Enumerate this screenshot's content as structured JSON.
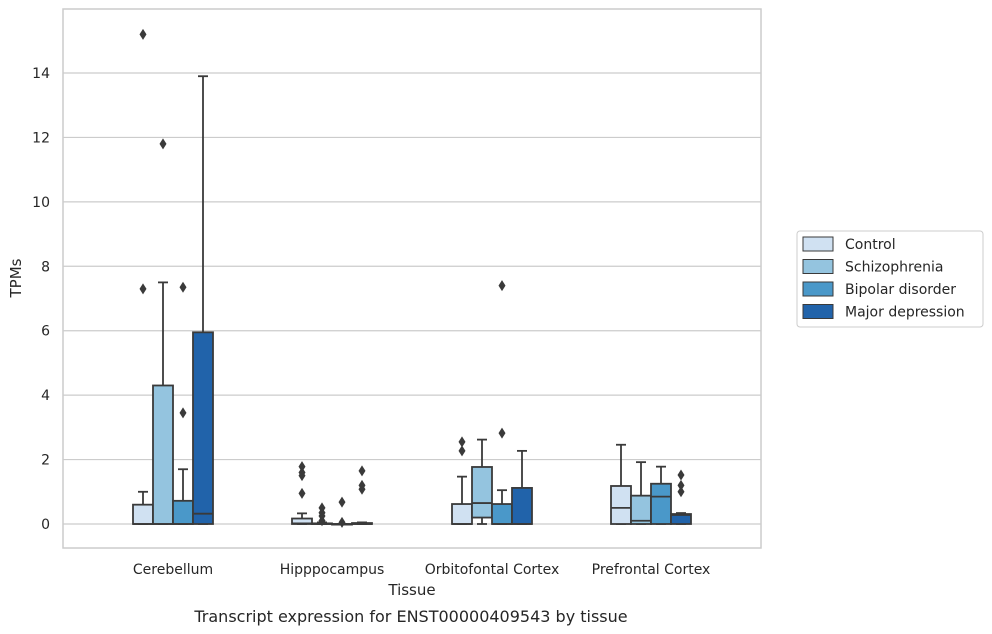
{
  "chart_data": {
    "type": "box",
    "caption": "Transcript expression for ENST00000409543 by tissue",
    "xlabel": "Tissue",
    "ylabel": "TPMs",
    "ylim": [
      -0.75,
      15.6
    ],
    "yticks": [
      0,
      2,
      4,
      6,
      8,
      10,
      12,
      14
    ],
    "grid": "horizontal",
    "legend_position": "right",
    "categories": [
      "Cerebellum",
      "Hipppocampus",
      "Orbitofontal Cortex",
      "Prefrontal Cortex"
    ],
    "series": [
      {
        "name": "Control",
        "color": "#d0e1f2"
      },
      {
        "name": "Schizophrenia",
        "color": "#94c4df"
      },
      {
        "name": "Bipolar disorder",
        "color": "#4a98c9"
      },
      {
        "name": "Major depression",
        "color": "#2163aa"
      }
    ],
    "boxes": [
      [
        {
          "q1": 0,
          "median": 0,
          "q3": 0.6,
          "wlo": 0,
          "whi": 1.0,
          "outliers": [
            7.3,
            15.2
          ]
        },
        {
          "q1": 0,
          "median": 0,
          "q3": 4.3,
          "wlo": 0,
          "whi": 7.5,
          "outliers": [
            11.8
          ]
        },
        {
          "q1": 0,
          "median": 0,
          "q3": 0.72,
          "wlo": 0,
          "whi": 1.7,
          "outliers": [
            3.45,
            7.35
          ]
        },
        {
          "q1": 0,
          "median": 0.32,
          "q3": 5.95,
          "wlo": 0,
          "whi": 13.9,
          "outliers": []
        }
      ],
      [
        {
          "q1": 0,
          "median": 0.02,
          "q3": 0.17,
          "wlo": 0,
          "whi": 0.33,
          "outliers": [
            0.95,
            1.5,
            1.6,
            1.78
          ]
        },
        {
          "q1": 0,
          "median": 0,
          "q3": 0.02,
          "wlo": 0,
          "whi": 0.05,
          "outliers": [
            0.1,
            0.25,
            0.35,
            0.5
          ]
        },
        {
          "q1": 0,
          "median": 0,
          "q3": 0,
          "wlo": 0,
          "whi": 0,
          "outliers": [
            0.05,
            0.68
          ]
        },
        {
          "q1": 0,
          "median": 0,
          "q3": 0.03,
          "wlo": 0,
          "whi": 0.05,
          "outliers": [
            1.08,
            1.2,
            1.65
          ]
        }
      ],
      [
        {
          "q1": 0,
          "median": 0,
          "q3": 0.62,
          "wlo": 0,
          "whi": 1.47,
          "outliers": [
            2.27,
            2.55
          ]
        },
        {
          "q1": 0.2,
          "median": 0.65,
          "q3": 1.77,
          "wlo": 0,
          "whi": 2.62,
          "outliers": []
        },
        {
          "q1": 0,
          "median": 0,
          "q3": 0.62,
          "wlo": 0,
          "whi": 1.05,
          "outliers": [
            2.82,
            7.4
          ]
        },
        {
          "q1": 0,
          "median": 0,
          "q3": 1.12,
          "wlo": 0,
          "whi": 2.27,
          "outliers": []
        }
      ],
      [
        {
          "q1": 0,
          "median": 0.5,
          "q3": 1.18,
          "wlo": 0,
          "whi": 2.46,
          "outliers": []
        },
        {
          "q1": 0,
          "median": 0.1,
          "q3": 0.88,
          "wlo": 0,
          "whi": 1.92,
          "outliers": []
        },
        {
          "q1": 0,
          "median": 0.85,
          "q3": 1.25,
          "wlo": 0,
          "whi": 1.78,
          "outliers": []
        },
        {
          "q1": 0,
          "median": 0.28,
          "q3": 0.31,
          "wlo": 0,
          "whi": 0.34,
          "outliers": [
            1.0,
            1.2,
            1.52
          ]
        }
      ]
    ]
  }
}
